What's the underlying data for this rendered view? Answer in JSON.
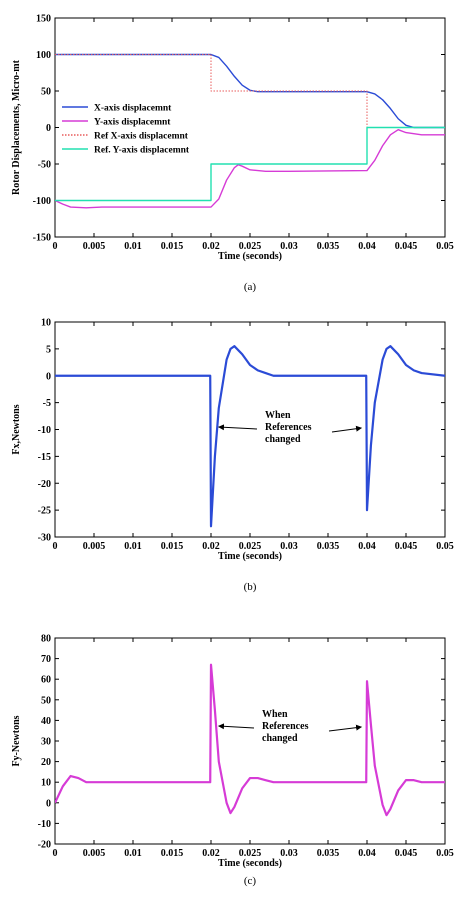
{
  "chart_data": [
    {
      "type": "line",
      "caption": "(a)",
      "xlabel": "Time (seconds)",
      "ylabel": "Rotor Displacements, Micro-mt",
      "xlim": [
        0,
        0.05
      ],
      "ylim": [
        -150,
        150
      ],
      "xticks": [
        "0",
        "0.005",
        "0.01",
        "0.015",
        "0.02",
        "0.025",
        "0.03",
        "0.035",
        "0.04",
        "0.045",
        "0.05"
      ],
      "yticks": [
        "150",
        "100",
        "50",
        "0",
        "-50",
        "-100",
        "-150"
      ],
      "grid": false,
      "legend_position": "left-center",
      "series": [
        {
          "name": "X-axis displacemnt",
          "color": "#2b4bd6",
          "style": "solid",
          "x": [
            0,
            0.02,
            0.021,
            0.022,
            0.023,
            0.024,
            0.025,
            0.026,
            0.03,
            0.04,
            0.041,
            0.042,
            0.043,
            0.044,
            0.045,
            0.046,
            0.05
          ],
          "y": [
            100,
            100,
            96,
            84,
            70,
            58,
            51,
            49,
            49,
            49,
            46,
            38,
            26,
            12,
            3,
            0,
            0
          ]
        },
        {
          "name": "Y-axis displacemnt",
          "color": "#d63bd6",
          "style": "solid",
          "x": [
            0,
            0.001,
            0.002,
            0.004,
            0.006,
            0.01,
            0.02,
            0.021,
            0.022,
            0.023,
            0.0235,
            0.024,
            0.025,
            0.027,
            0.03,
            0.04,
            0.041,
            0.042,
            0.043,
            0.044,
            0.045,
            0.047,
            0.05
          ],
          "y": [
            -100,
            -105,
            -109,
            -110,
            -109,
            -109,
            -109,
            -98,
            -72,
            -55,
            -51,
            -53,
            -58,
            -60,
            -60,
            -59,
            -45,
            -25,
            -10,
            -3,
            -7,
            -10,
            -10
          ]
        },
        {
          "name": "Ref X-axis displacemnt",
          "color": "#e85c5c",
          "style": "dotted",
          "x": [
            0,
            0.02,
            0.02,
            0.04,
            0.04,
            0.05
          ],
          "y": [
            100,
            100,
            50,
            50,
            0,
            0
          ]
        },
        {
          "name": "Ref. Y-axis displacemnt",
          "color": "#22e0b0",
          "style": "solid",
          "x": [
            0,
            0.02,
            0.02,
            0.04,
            0.04,
            0.05
          ],
          "y": [
            -100,
            -100,
            -50,
            -50,
            0,
            0
          ]
        }
      ]
    },
    {
      "type": "line",
      "caption": "(b)",
      "xlabel": "Time (seconds)",
      "ylabel": "Fx,Newtons",
      "xlim": [
        0,
        0.05
      ],
      "ylim": [
        -30,
        10
      ],
      "xticks": [
        "0",
        "0.005",
        "0.01",
        "0.015",
        "0.02",
        "0.025",
        "0.03",
        "0.035",
        "0.04",
        "0.045",
        "0.05"
      ],
      "yticks": [
        "10",
        "5",
        "0",
        "-5",
        "-10",
        "-15",
        "-20",
        "-25",
        "-30"
      ],
      "grid": false,
      "annotation": [
        "When",
        "References",
        "changed"
      ],
      "series": [
        {
          "name": "",
          "color": "#2b4bd6",
          "style": "solid",
          "x": [
            0,
            0.0199,
            0.02,
            0.0205,
            0.021,
            0.022,
            0.0225,
            0.023,
            0.024,
            0.025,
            0.026,
            0.027,
            0.028,
            0.03,
            0.0399,
            0.04,
            0.0405,
            0.041,
            0.042,
            0.0425,
            0.043,
            0.044,
            0.045,
            0.046,
            0.047,
            0.05
          ],
          "y": [
            0,
            0,
            -28,
            -15,
            -6,
            3,
            5,
            5.5,
            4,
            2,
            1,
            0.5,
            0,
            0,
            0,
            -25,
            -13,
            -5,
            3,
            5,
            5.5,
            4,
            2,
            1,
            0.5,
            0
          ]
        }
      ]
    },
    {
      "type": "line",
      "caption": "(c)",
      "xlabel": "Time (seconds)",
      "ylabel": "Fy-Newtons",
      "xlim": [
        0,
        0.05
      ],
      "ylim": [
        -20,
        80
      ],
      "xticks": [
        "0",
        "0.005",
        "0.01",
        "0.015",
        "0.02",
        "0.025",
        "0.03",
        "0.035",
        "0.04",
        "0.045",
        "0.05"
      ],
      "yticks": [
        "80",
        "70",
        "60",
        "50",
        "40",
        "30",
        "20",
        "10",
        "0",
        "-10",
        "-20"
      ],
      "grid": false,
      "annotation": [
        "When",
        "References",
        "changed"
      ],
      "series": [
        {
          "name": "",
          "color": "#d63bd6",
          "style": "solid",
          "x": [
            0,
            0.001,
            0.002,
            0.003,
            0.004,
            0.005,
            0.006,
            0.01,
            0.0199,
            0.02,
            0.0205,
            0.021,
            0.022,
            0.0225,
            0.023,
            0.024,
            0.025,
            0.026,
            0.027,
            0.028,
            0.03,
            0.0399,
            0.04,
            0.0405,
            0.041,
            0.042,
            0.0425,
            0.043,
            0.044,
            0.045,
            0.046,
            0.047,
            0.05
          ],
          "y": [
            0,
            8,
            13,
            12,
            10,
            10,
            10,
            10,
            10,
            67,
            45,
            20,
            0,
            -5,
            -2,
            7,
            12,
            12,
            11,
            10,
            10,
            10,
            59,
            38,
            18,
            -1,
            -6,
            -3,
            6,
            11,
            11,
            10,
            10
          ]
        }
      ]
    }
  ]
}
